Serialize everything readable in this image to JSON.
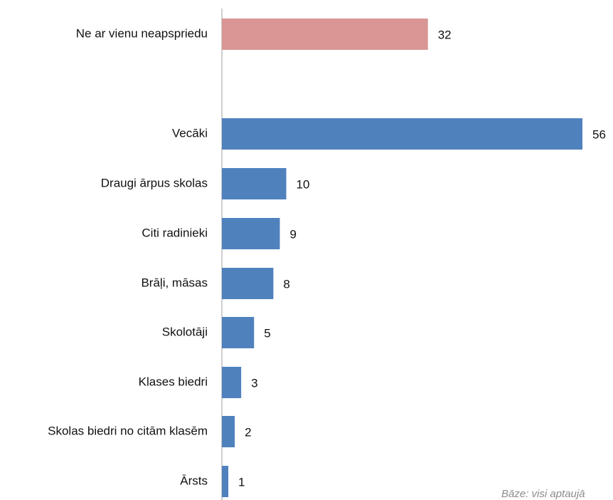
{
  "chart_data": {
    "type": "bar",
    "orientation": "horizontal",
    "categories": [
      "Ne ar vienu neapspriedu",
      "Vecāki",
      "Draugi ārpus skolas",
      "Citi radinieki",
      "Brāļi, māsas",
      "Skolotāji",
      "Klases biedri",
      "Skolas biedri no citām klasēm",
      "Ārsts"
    ],
    "values": [
      32,
      56,
      10,
      9,
      8,
      5,
      3,
      2,
      1
    ],
    "bar_colors": [
      "#d99694",
      "#4f81bd",
      "#4f81bd",
      "#4f81bd",
      "#4f81bd",
      "#4f81bd",
      "#4f81bd",
      "#4f81bd",
      "#4f81bd"
    ],
    "xlim": [
      0,
      56
    ],
    "grid": false,
    "legend": "none",
    "footnote": "Bāze: visi aptaujā"
  }
}
